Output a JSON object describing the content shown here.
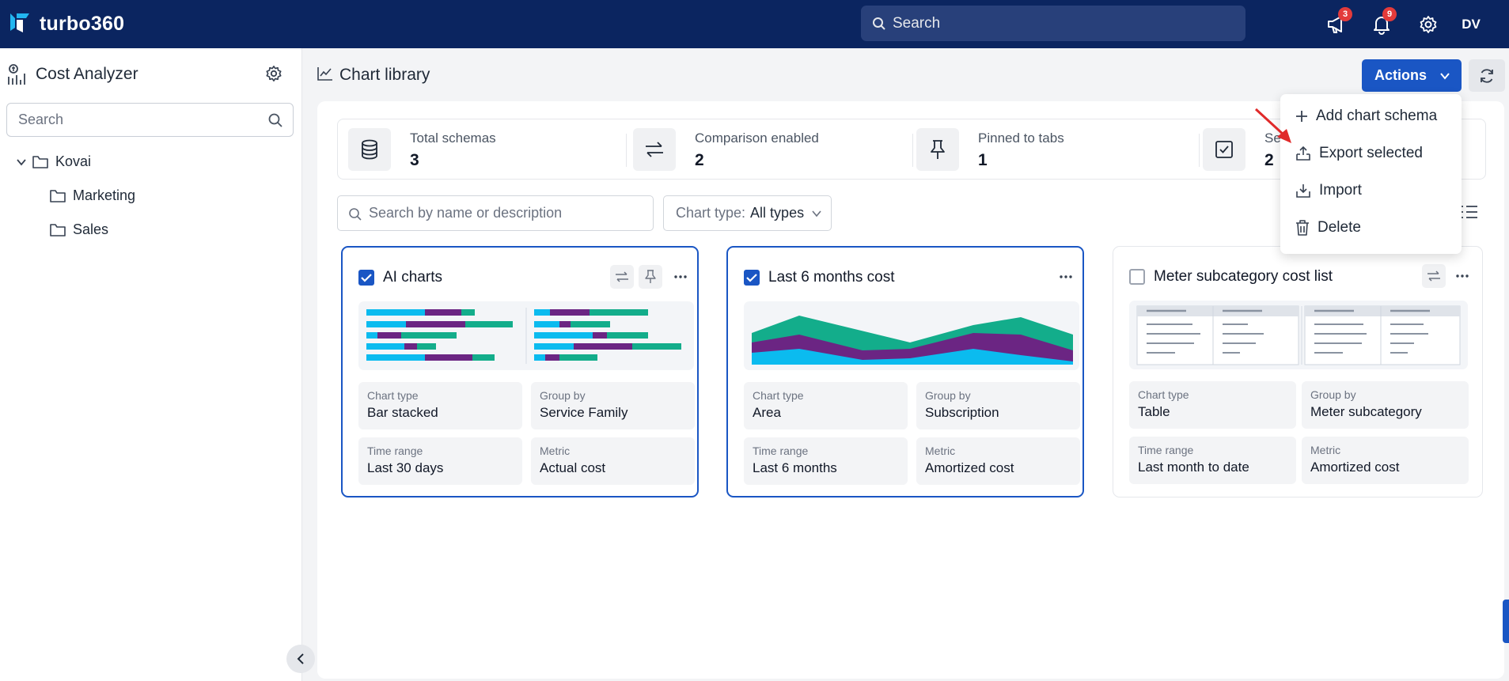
{
  "app": {
    "name": "turbo360"
  },
  "topbar": {
    "search_placeholder": "Search",
    "announcements_count": "3",
    "notifications_count": "9",
    "user_initials": "DV"
  },
  "sidebar": {
    "title": "Cost Analyzer",
    "search_placeholder": "Search",
    "tree": {
      "root": "Kovai",
      "children": [
        "Marketing",
        "Sales"
      ]
    }
  },
  "page": {
    "title": "Chart library",
    "actions_label": "Actions"
  },
  "actions_menu": {
    "items": [
      "Add chart schema",
      "Export selected",
      "Import",
      "Delete"
    ]
  },
  "stats": [
    {
      "label": "Total schemas",
      "value": "3",
      "icon": "database-icon"
    },
    {
      "label": "Comparison enabled",
      "value": "2",
      "icon": "swap-icon"
    },
    {
      "label": "Pinned to tabs",
      "value": "1",
      "icon": "pin-icon"
    },
    {
      "label": "Se",
      "value": "2",
      "icon": "checkbox-icon"
    }
  ],
  "filters": {
    "search_placeholder": "Search by name or description",
    "chart_type_label": "Chart type:",
    "chart_type_value": "All types"
  },
  "cards": [
    {
      "title": "AI charts",
      "selected": true,
      "chart_type_label": "Chart type",
      "chart_type": "Bar stacked",
      "group_by_label": "Group by",
      "group_by": "Service Family",
      "time_range_label": "Time range",
      "time_range": "Last 30 days",
      "metric_label": "Metric",
      "metric": "Actual cost"
    },
    {
      "title": "Last 6 months cost",
      "selected": true,
      "chart_type_label": "Chart type",
      "chart_type": "Area",
      "group_by_label": "Group by",
      "group_by": "Subscription",
      "time_range_label": "Time range",
      "time_range": "Last 6 months",
      "metric_label": "Metric",
      "metric": "Amortized cost"
    },
    {
      "title": "Meter subcategory cost list",
      "selected": false,
      "chart_type_label": "Chart type",
      "chart_type": "Table",
      "group_by_label": "Group by",
      "group_by": "Meter subcategory",
      "time_range_label": "Time range",
      "time_range": "Last month to date",
      "metric_label": "Metric",
      "metric": "Amortized cost"
    }
  ],
  "colors": {
    "topbar": "#0b2560",
    "primary": "#1a56c4",
    "series_cyan": "#0bbbef",
    "series_purple": "#6b2583",
    "series_green": "#13ad8b"
  }
}
